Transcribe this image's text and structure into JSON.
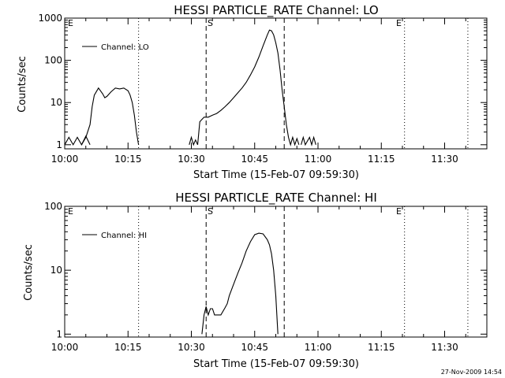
{
  "panels": [
    {
      "title": "HESSI PARTICLE_RATE Channel: LO",
      "xlabel": "Start Time (15-Feb-07 09:59:30)",
      "ylabel": "Counts/sec",
      "legend": "Channel: LO",
      "xticks": [
        "10:00",
        "10:15",
        "10:30",
        "10:45",
        "11:00",
        "11:15",
        "11:30"
      ],
      "yticks": [
        "1",
        "10",
        "100",
        "1000"
      ],
      "markers": {
        "start": "S",
        "end": "E",
        "left_edge": "E"
      }
    },
    {
      "title": "HESSI PARTICLE_RATE Channel: HI",
      "xlabel": "Start Time (15-Feb-07 09:59:30)",
      "ylabel": "Counts/sec",
      "legend": "Channel: HI",
      "xticks": [
        "10:00",
        "10:15",
        "10:30",
        "10:45",
        "11:00",
        "11:15",
        "11:30"
      ],
      "yticks": [
        "1",
        "10",
        "100"
      ],
      "markers": {
        "start": "S",
        "end": "E",
        "left_edge": "E"
      }
    }
  ],
  "footer": {
    "stamp": "27-Nov-2009 14:54"
  },
  "chart_data": [
    {
      "type": "line",
      "title": "HESSI PARTICLE_RATE Channel: LO",
      "xlabel": "Start Time (15-Feb-07 09:59:30)",
      "ylabel": "Counts/sec",
      "x_units": "minutes after 10:00",
      "y_scale": "log",
      "xlim": [
        0,
        100
      ],
      "ylim": [
        0.8,
        1000
      ],
      "legend_placement": "top-left",
      "vlines": {
        "dotted": [
          17.5,
          80.5,
          95.5
        ],
        "dashed": [
          33.5,
          52.0
        ]
      },
      "series": [
        {
          "name": "Channel: LO",
          "segments": [
            [
              [
                0,
                1
              ],
              [
                1,
                1.5
              ],
              [
                2,
                1
              ],
              [
                3,
                1.5
              ],
              [
                4,
                1
              ],
              [
                5,
                1.6
              ],
              [
                6,
                1
              ]
            ],
            [
              [
                4,
                1
              ],
              [
                5,
                1.5
              ],
              [
                6,
                3
              ],
              [
                6.5,
                8
              ],
              [
                7,
                15
              ],
              [
                8,
                22
              ],
              [
                9,
                16
              ],
              [
                9.5,
                13
              ],
              [
                10,
                14
              ],
              [
                11,
                18
              ],
              [
                12,
                22
              ],
              [
                13,
                21
              ],
              [
                14,
                22
              ],
              [
                15,
                19
              ],
              [
                15.5,
                15
              ],
              [
                16,
                10
              ],
              [
                16.5,
                5
              ],
              [
                17,
                2
              ],
              [
                17.5,
                1
              ]
            ],
            [
              [
                29.5,
                1
              ],
              [
                30,
                1.5
              ],
              [
                30.5,
                1
              ],
              [
                31,
                1.3
              ],
              [
                31.5,
                1
              ]
            ],
            [
              [
                31.5,
                1
              ],
              [
                32,
                3.5
              ],
              [
                33,
                4.5
              ],
              [
                34,
                4.5
              ],
              [
                35,
                5.0
              ],
              [
                36,
                5.5
              ],
              [
                37,
                6.5
              ],
              [
                38,
                8
              ],
              [
                39,
                10
              ],
              [
                40,
                13
              ],
              [
                41,
                17
              ],
              [
                42,
                22
              ],
              [
                43,
                30
              ],
              [
                44,
                45
              ],
              [
                45,
                70
              ],
              [
                46,
                120
              ],
              [
                47,
                220
              ],
              [
                48,
                400
              ],
              [
                48.5,
                520
              ],
              [
                49,
                500
              ],
              [
                49.5,
                400
              ],
              [
                50,
                260
              ],
              [
                50.5,
                150
              ],
              [
                51,
                60
              ],
              [
                51.5,
                20
              ],
              [
                52,
                8
              ],
              [
                52.5,
                3
              ],
              [
                53,
                1.5
              ],
              [
                53.5,
                1
              ],
              [
                54,
                1.5
              ],
              [
                54.5,
                1
              ],
              [
                55,
                1.4
              ],
              [
                55.5,
                1
              ]
            ],
            [
              [
                56,
                1
              ],
              [
                56.5,
                1.5
              ],
              [
                57,
                1
              ],
              [
                58,
                1.5
              ],
              [
                58.5,
                1
              ],
              [
                59,
                1.5
              ],
              [
                59.5,
                1
              ]
            ]
          ]
        }
      ]
    },
    {
      "type": "line",
      "title": "HESSI PARTICLE_RATE Channel: HI",
      "xlabel": "Start Time (15-Feb-07 09:59:30)",
      "ylabel": "Counts/sec",
      "x_units": "minutes after 10:00",
      "y_scale": "log",
      "xlim": [
        0,
        100
      ],
      "ylim": [
        0.9,
        100
      ],
      "legend_placement": "top-left",
      "vlines": {
        "dotted": [
          17.5,
          80.5,
          95.5
        ],
        "dashed": [
          33.5,
          52.0
        ]
      },
      "series": [
        {
          "name": "Channel: HI",
          "segments": [
            [
              [
                32.5,
                1
              ],
              [
                33,
                2
              ],
              [
                33.5,
                2.7
              ],
              [
                34,
                2
              ],
              [
                34.5,
                2.5
              ],
              [
                35,
                2.5
              ],
              [
                35.5,
                2
              ],
              [
                36,
                2
              ],
              [
                37,
                2
              ],
              [
                38,
                2.6
              ],
              [
                38.5,
                3
              ],
              [
                39,
                4
              ],
              [
                40,
                6
              ],
              [
                41,
                9
              ],
              [
                42,
                13
              ],
              [
                43,
                20
              ],
              [
                44,
                28
              ],
              [
                45,
                36
              ],
              [
                46,
                38
              ],
              [
                47,
                37
              ],
              [
                48,
                30
              ],
              [
                48.5,
                25
              ],
              [
                49,
                18
              ],
              [
                49.5,
                10
              ],
              [
                50,
                4
              ],
              [
                50.5,
                1
              ]
            ]
          ]
        }
      ]
    }
  ]
}
